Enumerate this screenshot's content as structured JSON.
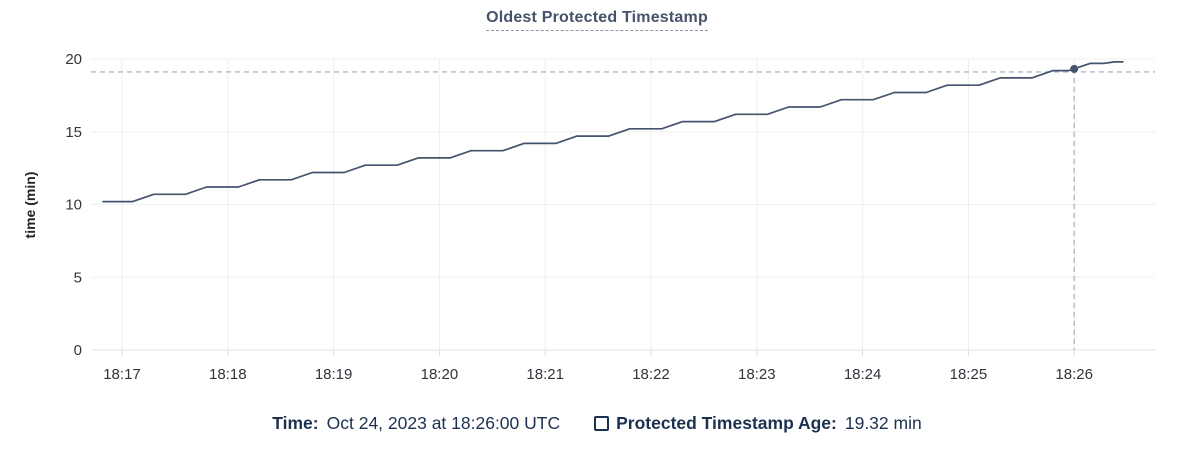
{
  "title": "Oldest Protected Timestamp",
  "y_axis_title": "time (min)",
  "footer": {
    "time_label": "Time:",
    "time_value": "Oct 24, 2023 at 18:26:00 UTC",
    "series_label": "Protected Timestamp Age:",
    "series_value": "19.32 min"
  },
  "colors": {
    "line": "#45536d",
    "dot": "#45536d",
    "title_text": "#46536b",
    "legend_text": "#1c3150",
    "crosshair": "#a7bcca",
    "gridline": "#efefef",
    "axis_line": "#e3e3e3",
    "tick_mark": "#d9d9d9",
    "axis_label": "#30353c",
    "y_axis_title_text": "#1f232a"
  },
  "chart_data": {
    "type": "line",
    "style": "stepped-ramp",
    "title": "Oldest Protected Timestamp",
    "xlabel": "",
    "ylabel": "time (min)",
    "x_ticks": [
      "18:17",
      "18:18",
      "18:19",
      "18:20",
      "18:21",
      "18:22",
      "18:23",
      "18:24",
      "18:25",
      "18:26"
    ],
    "y_ticks": [
      0,
      5,
      10,
      15,
      20
    ],
    "ylim": [
      0,
      20
    ],
    "x_domain_minutes_from_1817": [
      -0.29,
      9.76
    ],
    "grid": true,
    "legend_position": "bottom",
    "series": [
      {
        "name": "Protected Timestamp Age",
        "unit": "min",
        "points": [
          [
            -0.18,
            10.2
          ],
          [
            0.1,
            10.2
          ],
          [
            0.3,
            10.7
          ],
          [
            0.6,
            10.7
          ],
          [
            0.8,
            11.2
          ],
          [
            1.1,
            11.2
          ],
          [
            1.3,
            11.7
          ],
          [
            1.6,
            11.7
          ],
          [
            1.8,
            12.2
          ],
          [
            2.1,
            12.2
          ],
          [
            2.3,
            12.7
          ],
          [
            2.6,
            12.7
          ],
          [
            2.8,
            13.2
          ],
          [
            3.1,
            13.2
          ],
          [
            3.3,
            13.7
          ],
          [
            3.6,
            13.7
          ],
          [
            3.8,
            14.2
          ],
          [
            4.1,
            14.2
          ],
          [
            4.3,
            14.7
          ],
          [
            4.6,
            14.7
          ],
          [
            4.8,
            15.2
          ],
          [
            5.1,
            15.2
          ],
          [
            5.3,
            15.7
          ],
          [
            5.6,
            15.7
          ],
          [
            5.8,
            16.2
          ],
          [
            6.1,
            16.2
          ],
          [
            6.3,
            16.7
          ],
          [
            6.6,
            16.7
          ],
          [
            6.8,
            17.2
          ],
          [
            7.1,
            17.2
          ],
          [
            7.3,
            17.7
          ],
          [
            7.6,
            17.7
          ],
          [
            7.8,
            18.2
          ],
          [
            8.1,
            18.2
          ],
          [
            8.3,
            18.7
          ],
          [
            8.6,
            18.7
          ],
          [
            8.8,
            19.2
          ],
          [
            8.95,
            19.2
          ],
          [
            9.15,
            19.7
          ],
          [
            9.28,
            19.7
          ],
          [
            9.38,
            19.8
          ],
          [
            9.46,
            19.8
          ]
        ]
      }
    ],
    "crosshair": {
      "t_minutes_from_1817": 9.0,
      "time": "18:26:00",
      "value": 19.32
    }
  }
}
